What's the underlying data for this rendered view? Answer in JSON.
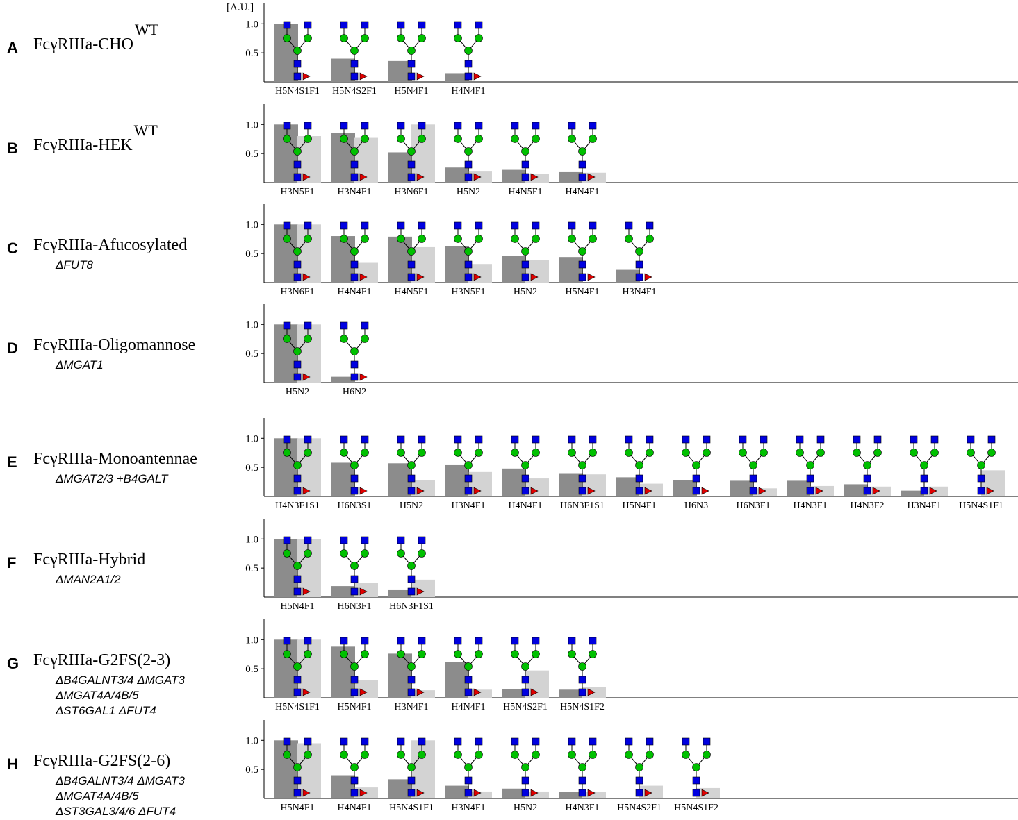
{
  "chart_data": [
    {
      "type": "bar",
      "panel": "A",
      "title": "FcγRIIIa-CHO",
      "title_superscript": "WT",
      "subtitle": [],
      "y_unit": "[A.U.]",
      "categories": [
        "H5N4S1F1",
        "H5N4S2F1",
        "H5N4F1",
        "H4N4F1"
      ],
      "series": [
        {
          "color": "#8c8c8c",
          "values": [
            1.0,
            0.4,
            0.36,
            0.15
          ]
        }
      ],
      "ylim": [
        0,
        1.35
      ],
      "yticks": [
        0.5,
        {
          "value": 1,
          "label": "1.0"
        }
      ]
    },
    {
      "type": "bar",
      "panel": "B",
      "title": "FcγRIIIa-HEK",
      "title_superscript": "WT",
      "subtitle": [],
      "categories": [
        "H3N5F1",
        "H3N4F1",
        "H3N6F1",
        "H5N2",
        "H4N5F1",
        "H4N4F1"
      ],
      "series": [
        {
          "color": "#8c8c8c",
          "values": [
            1.0,
            0.85,
            0.52,
            0.26,
            0.22,
            0.18
          ]
        },
        {
          "color": "#d3d3d3",
          "values": [
            0.8,
            0.77,
            1.0,
            0.19,
            0.15,
            0.17
          ]
        }
      ],
      "ylim": [
        0,
        1.35
      ],
      "yticks": [
        0.5,
        {
          "value": 1,
          "label": "1.0"
        }
      ]
    },
    {
      "type": "bar",
      "panel": "C",
      "title": "FcγRIIIa-Afucosylated",
      "subtitle": [
        "ΔFUT8"
      ],
      "categories": [
        "H3N6F1",
        "H4N4F1",
        "H4N5F1",
        "H3N5F1",
        "H5N2",
        "H5N4F1",
        "H3N4F1"
      ],
      "series": [
        {
          "color": "#8c8c8c",
          "values": [
            1.0,
            0.8,
            0.79,
            0.63,
            0.46,
            0.44,
            0.22
          ]
        },
        {
          "color": "#d3d3d3",
          "values": [
            1.0,
            0.34,
            0.61,
            0.32,
            0.39,
            null,
            null
          ]
        }
      ],
      "ylim": [
        0,
        1.35
      ],
      "yticks": [
        0.5,
        {
          "value": 1,
          "label": "1.0"
        }
      ]
    },
    {
      "type": "bar",
      "panel": "D",
      "title": "FcγRIIIa-Oligomannose",
      "subtitle": [
        "ΔMGAT1"
      ],
      "categories": [
        "H5N2",
        "H6N2"
      ],
      "series": [
        {
          "color": "#8c8c8c",
          "values": [
            1.0,
            0.1
          ]
        },
        {
          "color": "#d3d3d3",
          "values": [
            1.0,
            null
          ]
        }
      ],
      "ylim": [
        0,
        1.35
      ],
      "yticks": [
        0.5,
        {
          "value": 1,
          "label": "1.0"
        }
      ]
    },
    {
      "type": "bar",
      "panel": "E",
      "title": "FcγRIIIa-Monoantennae",
      "subtitle": [
        "ΔMGAT2/3 +B4GALT"
      ],
      "categories": [
        "H4N3F1S1",
        "H6N3S1",
        "H5N2",
        "H3N4F1",
        "H4N4F1",
        "H6N3F1S1",
        "H5N4F1",
        "H6N3",
        "H6N3F1",
        "H4N3F1",
        "H4N3F2",
        "H3N4F1",
        "H5N4S1F1"
      ],
      "series": [
        {
          "color": "#8c8c8c",
          "values": [
            1.0,
            0.58,
            0.57,
            0.55,
            0.48,
            0.4,
            0.33,
            0.28,
            0.27,
            0.27,
            0.21,
            0.1,
            null
          ]
        },
        {
          "color": "#d3d3d3",
          "values": [
            1.0,
            null,
            0.28,
            0.42,
            0.31,
            0.38,
            0.22,
            null,
            0.14,
            0.18,
            0.17,
            0.17,
            0.45
          ]
        }
      ],
      "ylim": [
        0,
        1.35
      ],
      "yticks": [
        0.5,
        {
          "value": 1,
          "label": "1.0"
        }
      ]
    },
    {
      "type": "bar",
      "panel": "F",
      "title": "FcγRIIIa-Hybrid",
      "subtitle": [
        "ΔMAN2A1/2"
      ],
      "categories": [
        "H5N4F1",
        "H6N3F1",
        "H6N3F1S1"
      ],
      "series": [
        {
          "color": "#8c8c8c",
          "values": [
            1.0,
            0.19,
            0.12
          ]
        },
        {
          "color": "#d3d3d3",
          "values": [
            1.0,
            0.25,
            0.3
          ]
        }
      ],
      "ylim": [
        0,
        1.35
      ],
      "yticks": [
        0.5,
        {
          "value": 1,
          "label": "1.0"
        }
      ]
    },
    {
      "type": "bar",
      "panel": "G",
      "title": "FcγRIIIa-G2FS(2-3)",
      "subtitle": [
        "ΔB4GALNT3/4 ΔMGAT3",
        "ΔMGAT4A/4B/5",
        "ΔST6GAL1 ΔFUT4"
      ],
      "categories": [
        "H5N4S1F1",
        "H5N4F1",
        "H3N4F1",
        "H4N4F1",
        "H5N4S2F1",
        "H5N4S1F2"
      ],
      "series": [
        {
          "color": "#8c8c8c",
          "values": [
            1.0,
            0.88,
            0.76,
            0.62,
            0.15,
            0.14
          ]
        },
        {
          "color": "#d3d3d3",
          "values": [
            1.0,
            0.31,
            0.13,
            0.14,
            0.47,
            0.19
          ]
        }
      ],
      "ylim": [
        0,
        1.35
      ],
      "yticks": [
        0.5,
        {
          "value": 1,
          "label": "1.0"
        }
      ]
    },
    {
      "type": "bar",
      "panel": "H",
      "title": "FcγRIIIa-G2FS(2-6)",
      "subtitle": [
        "ΔB4GALNT3/4 ΔMGAT3",
        "ΔMGAT4A/4B/5",
        "ΔST3GAL3/4/6 ΔFUT4"
      ],
      "categories": [
        "H5N4F1",
        "H4N4F1",
        "H5N4S1F1",
        "H3N4F1",
        "H5N2",
        "H4N3F1",
        "H5N4S2F1",
        "H5N4S1F2"
      ],
      "series": [
        {
          "color": "#8c8c8c",
          "values": [
            1.0,
            0.4,
            0.33,
            0.22,
            0.17,
            0.11,
            null,
            null
          ]
        },
        {
          "color": "#d3d3d3",
          "values": [
            0.95,
            0.19,
            1.0,
            0.12,
            0.12,
            0.11,
            0.22,
            0.18
          ]
        }
      ],
      "ylim": [
        0,
        1.35
      ],
      "yticks": [
        0.5,
        {
          "value": 1,
          "label": "1.0"
        }
      ]
    }
  ]
}
